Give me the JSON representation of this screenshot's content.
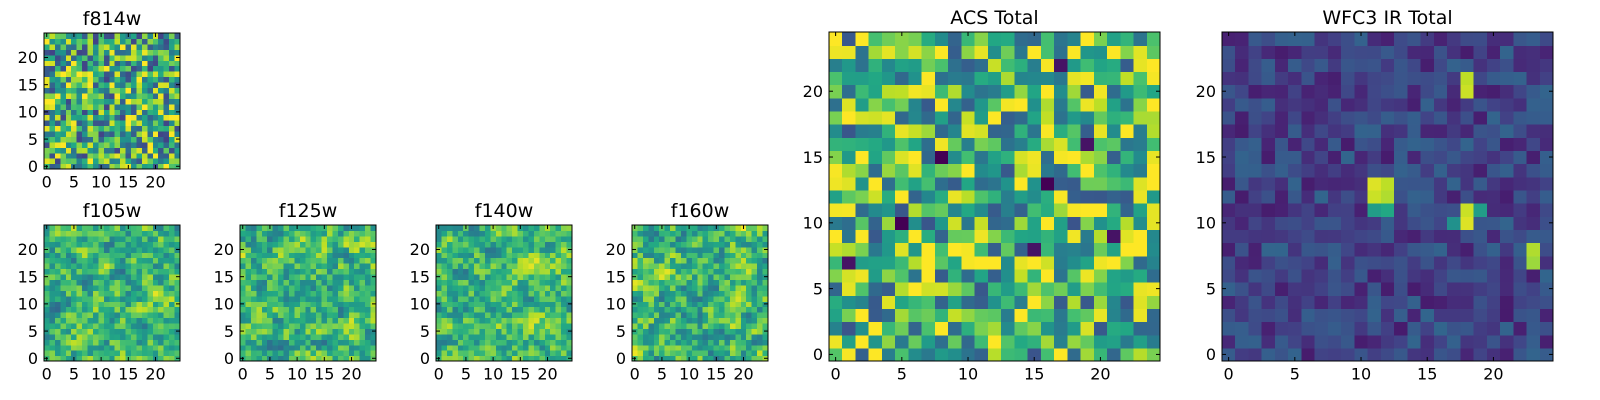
{
  "chart_data": [
    {
      "type": "heatmap",
      "title": "f814w",
      "grid_size": [
        25,
        25
      ],
      "xticks": [
        "0",
        "5",
        "10",
        "15",
        "20"
      ],
      "yticks": [
        "0",
        "5",
        "10",
        "15",
        "20"
      ],
      "xlim": [
        -0.5,
        24.5
      ],
      "ylim": [
        -0.5,
        24.5
      ],
      "colormap": "viridis",
      "value_range": [
        0,
        1
      ],
      "seed": 814,
      "mean": 0.62,
      "contrast": 0.85,
      "smooth": 0.0,
      "hotspots": []
    },
    {
      "type": "heatmap",
      "title": "f105w",
      "grid_size": [
        25,
        25
      ],
      "xticks": [
        "0",
        "5",
        "10",
        "15",
        "20"
      ],
      "yticks": [
        "0",
        "5",
        "10",
        "15",
        "20"
      ],
      "xlim": [
        -0.5,
        24.5
      ],
      "ylim": [
        -0.5,
        24.5
      ],
      "colormap": "viridis",
      "value_range": [
        0,
        1
      ],
      "seed": 105,
      "mean": 0.66,
      "contrast": 0.7,
      "smooth": 0.45,
      "hotspots": []
    },
    {
      "type": "heatmap",
      "title": "f125w",
      "grid_size": [
        25,
        25
      ],
      "xticks": [
        "0",
        "5",
        "10",
        "15",
        "20"
      ],
      "yticks": [
        "0",
        "5",
        "10",
        "15",
        "20"
      ],
      "xlim": [
        -0.5,
        24.5
      ],
      "ylim": [
        -0.5,
        24.5
      ],
      "colormap": "viridis",
      "value_range": [
        0,
        1
      ],
      "seed": 125,
      "mean": 0.66,
      "contrast": 0.7,
      "smooth": 0.45,
      "hotspots": []
    },
    {
      "type": "heatmap",
      "title": "f140w",
      "grid_size": [
        25,
        25
      ],
      "xticks": [
        "0",
        "5",
        "10",
        "15",
        "20"
      ],
      "yticks": [
        "0",
        "5",
        "10",
        "15",
        "20"
      ],
      "xlim": [
        -0.5,
        24.5
      ],
      "ylim": [
        -0.5,
        24.5
      ],
      "colormap": "viridis",
      "value_range": [
        0,
        1
      ],
      "seed": 140,
      "mean": 0.68,
      "contrast": 0.65,
      "smooth": 0.45,
      "hotspots": []
    },
    {
      "type": "heatmap",
      "title": "f160w",
      "grid_size": [
        25,
        25
      ],
      "xticks": [
        "0",
        "5",
        "10",
        "15",
        "20"
      ],
      "yticks": [
        "0",
        "5",
        "10",
        "15",
        "20"
      ],
      "xlim": [
        -0.5,
        24.5
      ],
      "ylim": [
        -0.5,
        24.5
      ],
      "colormap": "viridis",
      "value_range": [
        0,
        1
      ],
      "seed": 160,
      "mean": 0.66,
      "contrast": 0.72,
      "smooth": 0.45,
      "hotspots": []
    },
    {
      "type": "heatmap",
      "title": "ACS Total",
      "grid_size": [
        25,
        25
      ],
      "xticks": [
        "0",
        "5",
        "10",
        "15",
        "20"
      ],
      "yticks": [
        "0",
        "5",
        "10",
        "15",
        "20"
      ],
      "xlim": [
        -0.5,
        24.5
      ],
      "ylim": [
        -0.5,
        24.5
      ],
      "colormap": "viridis",
      "value_range": [
        0,
        1
      ],
      "seed": 900,
      "mean": 0.66,
      "contrast": 0.8,
      "smooth": 0.0,
      "hotspots": [
        {
          "x": 8,
          "y": 15,
          "v": 0.0
        },
        {
          "x": 16,
          "y": 13,
          "v": 0.0
        },
        {
          "x": 5,
          "y": 10,
          "v": 0.0
        },
        {
          "x": 1,
          "y": 7,
          "v": 0.05
        },
        {
          "x": 15,
          "y": 8,
          "v": 0.05
        },
        {
          "x": 21,
          "y": 9,
          "v": 0.05
        },
        {
          "x": 17,
          "y": 22,
          "v": 0.05
        },
        {
          "x": 19,
          "y": 16,
          "v": 0.05
        }
      ]
    },
    {
      "type": "heatmap",
      "title": "WFC3 IR Total",
      "grid_size": [
        25,
        25
      ],
      "xticks": [
        "0",
        "5",
        "10",
        "15",
        "20"
      ],
      "yticks": [
        "0",
        "5",
        "10",
        "15",
        "20"
      ],
      "xlim": [
        -0.5,
        24.5
      ],
      "ylim": [
        -0.5,
        24.5
      ],
      "colormap": "viridis",
      "value_range": [
        0,
        1
      ],
      "seed": 1600,
      "mean": 0.2,
      "contrast": 0.25,
      "smooth": 0.0,
      "hotspots": [
        {
          "x": 11,
          "y": 13,
          "v": 0.95
        },
        {
          "x": 12,
          "y": 13,
          "v": 0.9
        },
        {
          "x": 11,
          "y": 12,
          "v": 0.92
        },
        {
          "x": 12,
          "y": 12,
          "v": 0.88
        },
        {
          "x": 11,
          "y": 11,
          "v": 0.55
        },
        {
          "x": 12,
          "y": 11,
          "v": 0.6
        },
        {
          "x": 18,
          "y": 11,
          "v": 0.92
        },
        {
          "x": 18,
          "y": 10,
          "v": 0.95
        },
        {
          "x": 19,
          "y": 11,
          "v": 0.55
        },
        {
          "x": 17,
          "y": 10,
          "v": 0.5
        },
        {
          "x": 18,
          "y": 21,
          "v": 0.9
        },
        {
          "x": 18,
          "y": 20,
          "v": 0.92
        },
        {
          "x": 23,
          "y": 7,
          "v": 0.85
        },
        {
          "x": 23,
          "y": 8,
          "v": 0.88
        }
      ]
    }
  ]
}
